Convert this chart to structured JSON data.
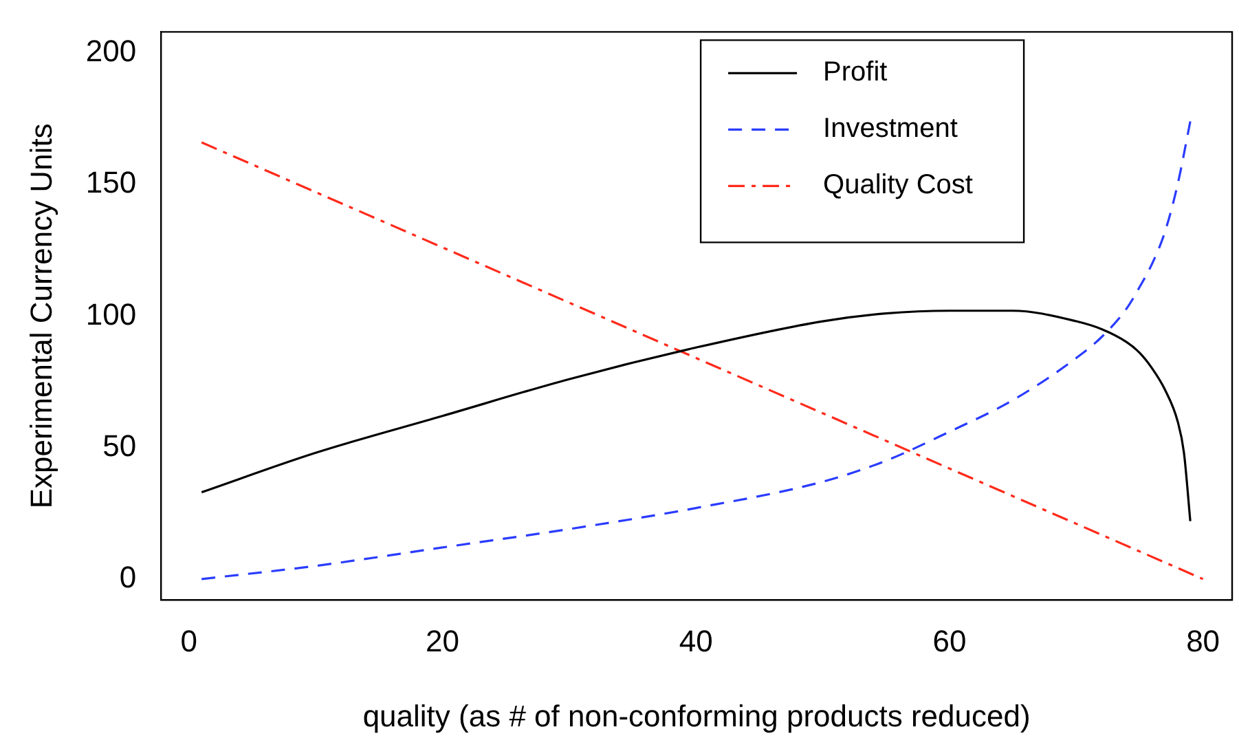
{
  "chart_data": {
    "type": "line",
    "xlabel": "quality (as # of non-conforming products reduced)",
    "ylabel": "Experimental Currency Units",
    "xlim": [
      -2.2,
      82.3
    ],
    "ylim": [
      -8,
      208
    ],
    "xticks": [
      0,
      20,
      40,
      60,
      80
    ],
    "yticks": [
      0,
      50,
      100,
      150,
      200
    ],
    "grid": false,
    "legend": "top right",
    "marker": "none",
    "series": [
      {
        "name": "Profit",
        "color": "#000000",
        "line_style": "solid",
        "x": [
          1,
          10,
          20,
          30,
          40,
          50,
          55,
          60,
          65,
          70,
          72,
          74,
          75,
          76,
          77,
          78,
          78.5,
          79
        ],
        "values": [
          33,
          48,
          62,
          76,
          88,
          98,
          101,
          102,
          102,
          98,
          95,
          90,
          86,
          80,
          72,
          60,
          48,
          22
        ]
      },
      {
        "name": "Investment",
        "color": "#2a3cff",
        "line_style": "dashed",
        "x": [
          1,
          10,
          20,
          30,
          40,
          50,
          55,
          60,
          65,
          70,
          72,
          74,
          75,
          76,
          77,
          78,
          79
        ],
        "values": [
          0,
          5,
          12,
          19,
          27,
          37,
          45,
          56,
          68,
          84,
          92,
          103,
          111,
          120,
          132,
          150,
          174
        ]
      },
      {
        "name": "Quality Cost",
        "color": "#ff2a1a",
        "line_style": "dashdot",
        "x": [
          1,
          80
        ],
        "values": [
          166,
          0
        ]
      }
    ]
  }
}
